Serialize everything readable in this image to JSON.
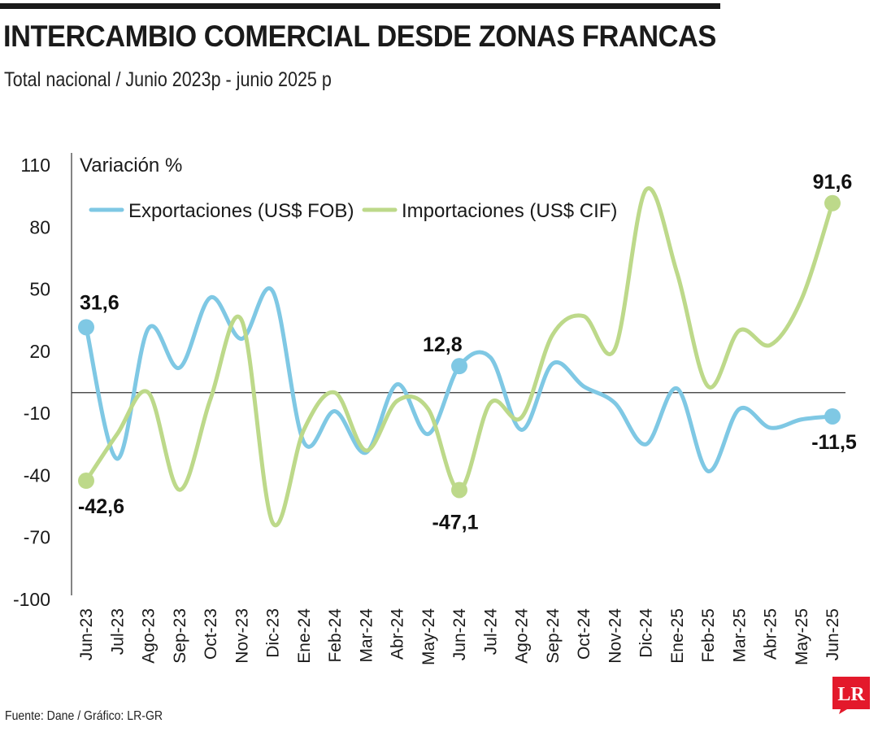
{
  "header": {
    "title": "INTERCAMBIO COMERCIAL DESDE ZONAS FRANCAS",
    "subtitle": "Total nacional / Junio 2023p - junio 2025 p"
  },
  "footer": {
    "source": "Fuente: Dane / Gráfico: LR-GR",
    "logo_text": "LR",
    "logo_color": "#e3192b"
  },
  "chart_data": {
    "type": "line",
    "ylabel": "Variación %",
    "ylim": [
      -100,
      110
    ],
    "yticks": [
      110,
      80,
      50,
      20,
      -10,
      -40,
      -70,
      -100
    ],
    "categories": [
      "Jun-23",
      "Jul-23",
      "Ago-23",
      "Sep-23",
      "Oct-23",
      "Nov-23",
      "Dic-23",
      "Ene-24",
      "Feb-24",
      "Mar-24",
      "Abr-24",
      "May-24",
      "Jun-24",
      "Jul-24",
      "Ago-24",
      "Sep-24",
      "Oct-24",
      "Nov-24",
      "Dic-24",
      "Ene-25",
      "Feb-25",
      "Mar-25",
      "Abr-25",
      "May-25",
      "Jun-25"
    ],
    "series": [
      {
        "name": "Exportaciones (US$ FOB)",
        "color": "#7fc8e4",
        "values": [
          31.6,
          -32,
          31,
          12,
          46,
          26,
          49,
          -24,
          -9,
          -29,
          4,
          -20,
          12.8,
          17,
          -18,
          14,
          3,
          -5,
          -25,
          2,
          -38,
          -8,
          -17,
          -13,
          -11.5
        ]
      },
      {
        "name": "Importaciones  (US$ CIF)",
        "color": "#bdd98a",
        "values": [
          -42.6,
          -20,
          0,
          -47,
          -3,
          35,
          -63,
          -18,
          0,
          -28,
          -4,
          -8,
          -47.1,
          -5,
          -12,
          28,
          37,
          21,
          98,
          58,
          3,
          30,
          23,
          45,
          91.6
        ]
      }
    ],
    "annotations": [
      {
        "series": 0,
        "index": 0,
        "label": "31,6"
      },
      {
        "series": 0,
        "index": 12,
        "label": "12,8"
      },
      {
        "series": 0,
        "index": 24,
        "label": "-11,5"
      },
      {
        "series": 1,
        "index": 0,
        "label": "-42,6"
      },
      {
        "series": 1,
        "index": 12,
        "label": "-47,1"
      },
      {
        "series": 1,
        "index": 24,
        "label": "91,6"
      }
    ],
    "legend_position": "top",
    "grid": false
  }
}
